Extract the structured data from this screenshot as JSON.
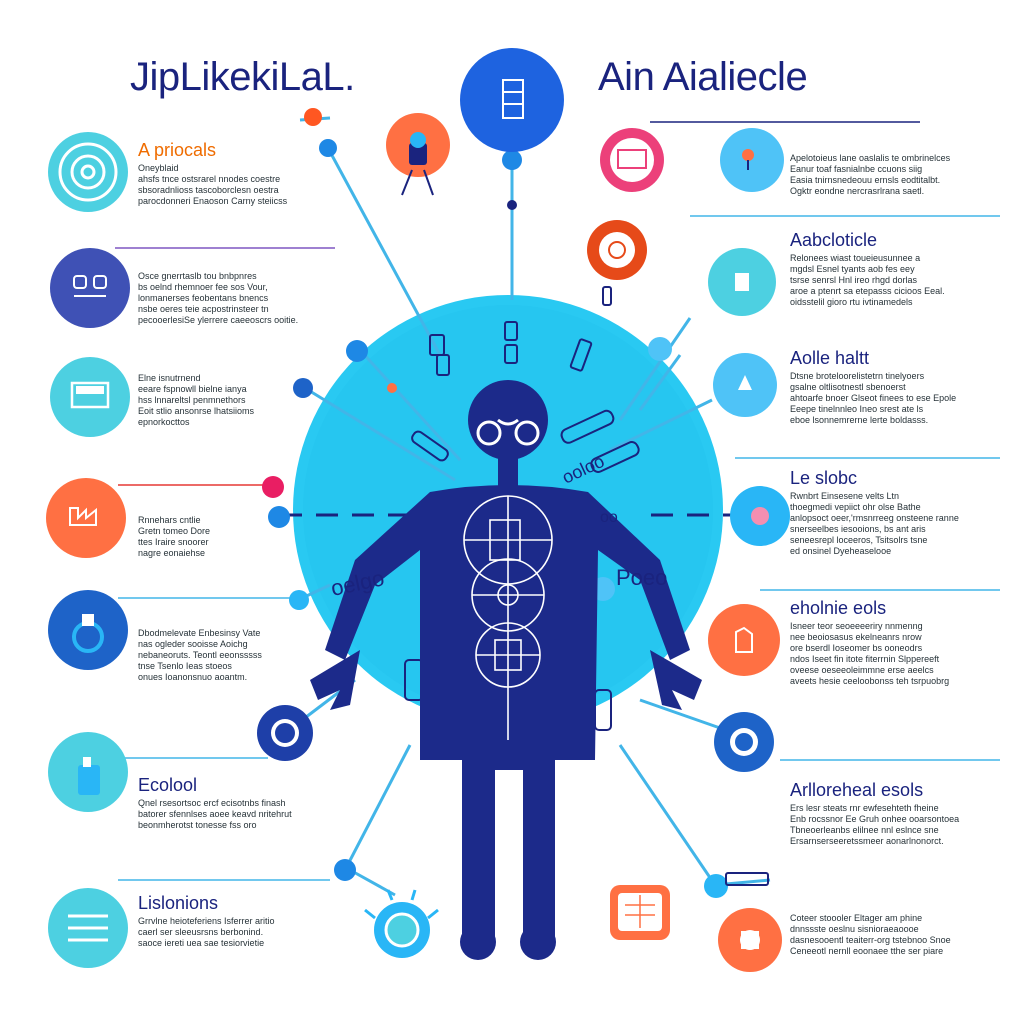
{
  "titles": {
    "left": "JipLikekiLaL.",
    "right": "Ain Aialiecle"
  },
  "colors": {
    "navy": "#1a237e",
    "cyan": "#29b6f6",
    "light_cyan": "#4fc3f7",
    "orange": "#ff7043",
    "blue": "#1565c0",
    "pink": "#ec407a",
    "red": "#e53935"
  },
  "left_blocks": [
    {
      "heading": "A priocals",
      "lines": [
        "Oneyblaid",
        "ahsfs tnce ostsrarel nnodes coestre",
        "sbsoradnlioss tascoborclesn oestra",
        "parocdonneri Enaoson Carny steiicss"
      ],
      "icon": "concentric-circles-icon"
    },
    {
      "heading": "",
      "lines": [
        "Osce gnerrtaslb tou bnbpnres",
        "bs oelnd rhemnoer fee sos Vour,",
        "lonmanerses feobentans bnencs",
        "nsbe oeres teie acpostrinsteer tn",
        "pecooerlesiSe ylerrere caeeoscrs ooitie."
      ],
      "icon": "robot-face-icon"
    },
    {
      "heading": "",
      "lines": [
        "Elne isnutrnend",
        "eeare fspnowll bielne ianya",
        "hss lnnareltsl penmnethors",
        "Eoit stlio ansonrse lhatsiioms",
        "epnorkocttos"
      ],
      "icon": "monitor-icon"
    },
    {
      "heading": "",
      "lines": [
        "Rnnehars cntlie",
        "Gretn tomeo Dore",
        "ttes Iraire snoorer",
        "nagre eonaiehse"
      ],
      "icon": "factory-icon"
    },
    {
      "heading": "",
      "lines": [
        "Dbodmelevate Enbesinsy Vate",
        "nas ogleder sooisse Aoichg",
        "nebaneoruts. Teontl eeonsssss",
        "tnse Tsenlo Ieas stoeos",
        "onues Ioanonsnuo aoantm."
      ],
      "icon": "lightbulb-icon"
    },
    {
      "heading": "Ecolool",
      "lines": [
        "Qnel rsesortsoc ercf ecisotnbs finash",
        "batorer sfennlses aoee keavd nritehrut",
        "beonmherotst tonesse fss oro"
      ],
      "icon": "bottle-icon"
    },
    {
      "heading": "Lislonions",
      "lines": [
        "Grrvlne heioteferiens Isferrer aritio",
        "caerl ser sleeusrsns berbonind.",
        "saoce iereti uea sae tesiorvietie"
      ],
      "icon": "list-icon"
    }
  ],
  "right_blocks": [
    {
      "heading": "",
      "lines": [
        "Apelotoieus lane oaslalis te ombrinelces",
        "Eanur toaf fasnialnbe ccuons siig",
        "Easia tnirnsnedeouu ernsls eodtitalbt.",
        "Ogktr eondne nercrasrlrana saetl."
      ],
      "icon": "ice-cream-icon"
    },
    {
      "heading": "Aabcloticle",
      "lines": [
        "Relonees wiast toueieusunnee a",
        "mgdsl Esnel tyants aob fes eey",
        "tsrse senrsl Hnl ireo rhgd dorlas",
        "aroe a ptenrt sa etepasss cicioos Eeal.",
        "oidsstelil gioro rtu ivtinamedels"
      ],
      "icon": "document-icon"
    },
    {
      "heading": "Aolle haltt",
      "lines": [
        "Dtsne broteloorelistetrn tinelyoers",
        "gsalne oltlisotnestl sbenoerst",
        "ahtoarfe bnoer Glseot finees to ese Epole",
        "Eeepe tinelnnleo Ineo srest ate ls",
        "eboe lsonnemrerne lerte boldasss."
      ],
      "icon": "bell-icon"
    },
    {
      "heading": "Le slobc",
      "lines": [
        "Rwnbrt Einsesene velts Ltn",
        "thoegmedi vepiict ohr olse Bathe",
        "anlopsoct oeer,'rmsnrreeg onsteene ranne",
        "snerseelbes iesooions, bs ant aris",
        "seneesrepl loceeros, Tsitsolrs tsne",
        "ed onsinel Dyeheaselooe"
      ],
      "icon": "pink-dot-icon"
    },
    {
      "heading": "eholnie eols",
      "lines": [
        "Isneer teor seoeeeeriry nnmenng",
        "nee beoiosasus ekelneanrs nrow",
        "ore bserdl Ioseomer bs ooneodrs",
        "ndos Iseet fin itote fiterrnin Slppereeft",
        "oveese oeseeoleimmne erse aeelcs",
        "aveets hesie ceeloobonss teh tsrpuobrg"
      ],
      "icon": "hand-tap-icon"
    },
    {
      "heading": "Arlloreheal esols",
      "lines": [
        "Ers lesr steats rnr ewfesehteth fheine",
        "Enb rocssnor Ee Gruh onhee ooarsontoea",
        "Tbneoerleanbs elilnee nnl eslnce sne",
        "Ersarnserseeretssmeer aonarlnonorct."
      ],
      "icon": "ring-icon"
    },
    {
      "heading": "",
      "lines": [
        "Coteer stoooler Eltager am phine",
        "dnnssste oeslnu sisnioraeaoooe",
        "dasnesooentl teaiterr-org tstebnoo Snoe",
        "Ceneeotl nernll eoonaee tthe ser piare"
      ],
      "icon": "gear-icon"
    }
  ],
  "body_labels": {
    "left_mid": "oelgo",
    "right_mid": "Poeo",
    "chest": "oo",
    "upper_right": "ooloo"
  }
}
